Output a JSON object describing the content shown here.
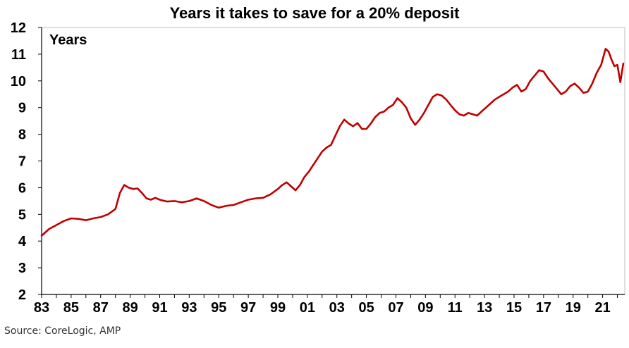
{
  "chart_data": {
    "type": "line",
    "title": "Years it takes to save for a 20% deposit",
    "ylabel": "Years",
    "xlabel": "",
    "source": "Source: CoreLogic, AMP",
    "ylim": [
      2,
      12
    ],
    "xlim": [
      1983,
      2022.5
    ],
    "y_ticks": [
      "2",
      "3",
      "4",
      "5",
      "6",
      "7",
      "8",
      "9",
      "10",
      "11",
      "12"
    ],
    "x_tick_years": [
      1983,
      1985,
      1987,
      1989,
      1991,
      1993,
      1995,
      1997,
      1999,
      2001,
      2003,
      2005,
      2007,
      2009,
      2011,
      2013,
      2015,
      2017,
      2019,
      2021
    ],
    "x_tick_labels": [
      "83",
      "85",
      "87",
      "89",
      "91",
      "93",
      "95",
      "97",
      "99",
      "01",
      "03",
      "05",
      "07",
      "09",
      "11",
      "13",
      "15",
      "17",
      "19",
      "21"
    ],
    "grid": false,
    "series": [
      {
        "color": "#c00000",
        "x": [
          1983.0,
          1983.5,
          1984.0,
          1984.5,
          1985.0,
          1985.5,
          1986.0,
          1986.5,
          1987.0,
          1987.5,
          1988.0,
          1988.3,
          1988.6,
          1988.9,
          1989.2,
          1989.5,
          1989.8,
          1990.1,
          1990.4,
          1990.7,
          1991.0,
          1991.5,
          1992.0,
          1992.5,
          1993.0,
          1993.5,
          1994.0,
          1994.5,
          1995.0,
          1995.5,
          1996.0,
          1996.5,
          1997.0,
          1997.5,
          1998.0,
          1998.5,
          1999.0,
          1999.3,
          1999.6,
          1999.9,
          2000.2,
          2000.5,
          2000.8,
          2001.1,
          2001.4,
          2001.7,
          2002.0,
          2002.3,
          2002.6,
          2002.9,
          2003.2,
          2003.5,
          2003.8,
          2004.1,
          2004.4,
          2004.7,
          2005.0,
          2005.3,
          2005.6,
          2005.9,
          2006.2,
          2006.5,
          2006.8,
          2007.1,
          2007.4,
          2007.7,
          2008.0,
          2008.3,
          2008.6,
          2008.9,
          2009.2,
          2009.5,
          2009.8,
          2010.1,
          2010.4,
          2010.7,
          2011.0,
          2011.3,
          2011.6,
          2011.9,
          2012.2,
          2012.5,
          2012.8,
          2013.1,
          2013.4,
          2013.7,
          2014.0,
          2014.3,
          2014.6,
          2014.9,
          2015.2,
          2015.5,
          2015.8,
          2016.1,
          2016.4,
          2016.7,
          2017.0,
          2017.3,
          2017.6,
          2017.9,
          2018.2,
          2018.5,
          2018.8,
          2019.1,
          2019.4,
          2019.7,
          2020.0,
          2020.3,
          2020.6,
          2020.9,
          2021.2,
          2021.4,
          2021.6,
          2021.8,
          2022.0,
          2022.2,
          2022.4
        ],
        "values": [
          4.2,
          4.45,
          4.6,
          4.75,
          4.85,
          4.83,
          4.78,
          4.85,
          4.9,
          5.0,
          5.2,
          5.8,
          6.1,
          6.0,
          5.95,
          5.97,
          5.8,
          5.6,
          5.55,
          5.62,
          5.55,
          5.48,
          5.5,
          5.45,
          5.5,
          5.6,
          5.5,
          5.35,
          5.25,
          5.32,
          5.35,
          5.45,
          5.55,
          5.6,
          5.62,
          5.75,
          5.95,
          6.1,
          6.2,
          6.05,
          5.9,
          6.1,
          6.4,
          6.6,
          6.85,
          7.1,
          7.35,
          7.5,
          7.6,
          7.95,
          8.3,
          8.55,
          8.4,
          8.3,
          8.42,
          8.2,
          8.2,
          8.4,
          8.65,
          8.8,
          8.85,
          9.0,
          9.1,
          9.35,
          9.2,
          9.0,
          8.6,
          8.35,
          8.55,
          8.8,
          9.1,
          9.4,
          9.5,
          9.45,
          9.3,
          9.1,
          8.9,
          8.75,
          8.7,
          8.8,
          8.75,
          8.7,
          8.85,
          9.0,
          9.15,
          9.3,
          9.4,
          9.5,
          9.6,
          9.75,
          9.85,
          9.6,
          9.7,
          10.0,
          10.2,
          10.4,
          10.35,
          10.1,
          9.9,
          9.7,
          9.5,
          9.6,
          9.8,
          9.9,
          9.75,
          9.55,
          9.6,
          9.9,
          10.3,
          10.6,
          11.2,
          11.1,
          10.8,
          10.55,
          10.6,
          9.95,
          10.65
        ]
      }
    ]
  }
}
